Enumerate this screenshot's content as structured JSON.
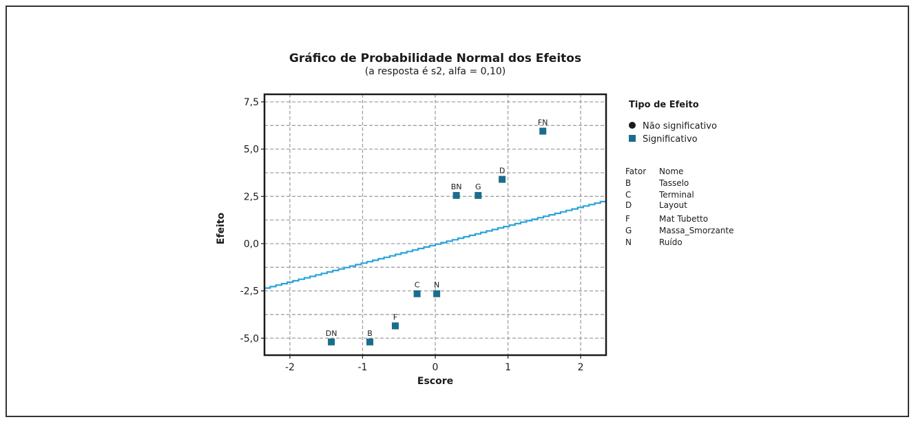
{
  "chart_data": {
    "type": "scatter",
    "title": "Gráfico de Probabilidade Normal dos Efeitos",
    "subtitle": "(a resposta é s2, alfa = 0,10)",
    "xlabel": "Escore",
    "ylabel": "Efeito",
    "xlim": [
      -2.35,
      2.35
    ],
    "ylim": [
      -5.9,
      7.9
    ],
    "xticks": [
      -2,
      -1,
      0,
      1,
      2
    ],
    "xtick_labels": [
      "-2",
      "-1",
      "0",
      "1",
      "2"
    ],
    "yticks": [
      -5,
      -2.5,
      0,
      2.5,
      5,
      7.5
    ],
    "ytick_labels": [
      "-5,0",
      "-2,5",
      "0,0",
      "2,5",
      "5,0",
      "7,5"
    ],
    "grid": true,
    "colors": {
      "significant": "#1a6e8c",
      "line": "#2aa3d8",
      "grid": "#a0a0a0"
    },
    "reference_line": {
      "x": [
        -2.35,
        2.35
      ],
      "y": [
        -2.35,
        2.3
      ]
    },
    "points": [
      {
        "label": "FN",
        "x": 1.48,
        "y": 5.95,
        "type": "Significativo"
      },
      {
        "label": "D",
        "x": 0.92,
        "y": 3.4,
        "type": "Significativo"
      },
      {
        "label": "G",
        "x": 0.59,
        "y": 2.55,
        "type": "Significativo"
      },
      {
        "label": "BN",
        "x": 0.29,
        "y": 2.55,
        "type": "Significativo"
      },
      {
        "label": "N",
        "x": 0.02,
        "y": -2.65,
        "type": "Significativo"
      },
      {
        "label": "C",
        "x": -0.25,
        "y": -2.65,
        "type": "Significativo"
      },
      {
        "label": "F",
        "x": -0.55,
        "y": -4.35,
        "type": "Significativo"
      },
      {
        "label": "B",
        "x": -0.9,
        "y": -5.2,
        "type": "Significativo"
      },
      {
        "label": "DN",
        "x": -1.43,
        "y": -5.2,
        "type": "Significativo"
      }
    ],
    "legend": {
      "title": "Tipo de Efeito",
      "position": "right",
      "items": [
        {
          "label": "Não significativo",
          "marker": "circle",
          "color": "#1a1a1a"
        },
        {
          "label": "Significativo",
          "marker": "square",
          "color": "#1a6e8c"
        }
      ]
    },
    "factor_table": {
      "headers": [
        "Fator",
        "Nome"
      ],
      "rows": [
        [
          "B",
          "Tasselo"
        ],
        [
          "C",
          "Terminal"
        ],
        [
          "D",
          "Layout"
        ],
        [
          "F",
          "Mat Tubetto"
        ],
        [
          "G",
          "Massa_Smorzante"
        ],
        [
          "N",
          "Ruído"
        ]
      ]
    }
  }
}
